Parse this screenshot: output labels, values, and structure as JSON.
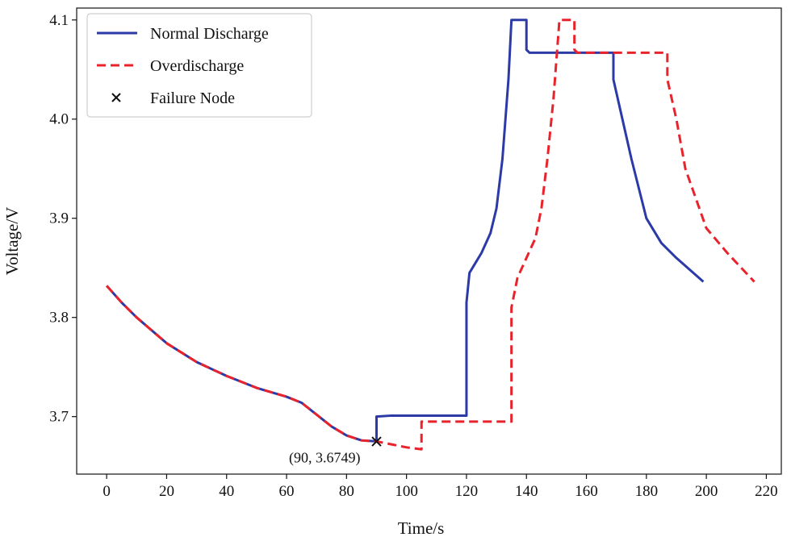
{
  "chart_data": {
    "type": "line",
    "title": "",
    "xlabel": "Time/s",
    "ylabel": "Voltage/V",
    "xlim": [
      -10,
      225
    ],
    "ylim": [
      3.642,
      4.112
    ],
    "xticks": [
      0,
      20,
      40,
      60,
      80,
      100,
      120,
      140,
      160,
      180,
      200,
      220
    ],
    "yticks": [
      3.7,
      3.8,
      3.9,
      4.0,
      4.1
    ],
    "xtick_labels": [
      "0",
      "20",
      "40",
      "60",
      "80",
      "100",
      "120",
      "140",
      "160",
      "180",
      "200",
      "220"
    ],
    "ytick_labels": [
      "3.7",
      "3.8",
      "3.9",
      "4.0",
      "4.1"
    ],
    "legend_position": "top-left",
    "series": [
      {
        "name": "Normal Discharge",
        "color": "#2b3aa6",
        "style": "solid",
        "x": [
          0,
          5,
          10,
          20,
          30,
          40,
          50,
          60,
          65,
          70,
          75,
          80,
          85,
          90,
          90,
          95,
          100,
          110,
          120,
          120,
          121,
          123,
          125,
          128,
          130,
          132,
          134,
          135,
          135,
          140,
          140,
          141,
          150,
          160,
          169,
          169,
          172,
          175,
          180,
          185,
          190,
          199
        ],
        "y": [
          3.832,
          3.815,
          3.8,
          3.774,
          3.755,
          3.741,
          3.729,
          3.72,
          3.714,
          3.702,
          3.69,
          3.681,
          3.676,
          3.675,
          3.7,
          3.701,
          3.701,
          3.701,
          3.701,
          3.815,
          3.845,
          3.855,
          3.865,
          3.885,
          3.91,
          3.96,
          4.04,
          4.1,
          4.1,
          4.1,
          4.07,
          4.067,
          4.067,
          4.067,
          4.067,
          4.04,
          4.0,
          3.96,
          3.9,
          3.875,
          3.86,
          3.836
        ]
      },
      {
        "name": "Overdischarge",
        "color": "#e8232b",
        "style": "dashed",
        "x": [
          0,
          5,
          10,
          20,
          30,
          40,
          50,
          60,
          65,
          70,
          75,
          80,
          85,
          90,
          95,
          100,
          105,
          105,
          115,
          125,
          135,
          135,
          137,
          140,
          143,
          145,
          147,
          149,
          151,
          151,
          156,
          156,
          157,
          165,
          175,
          187,
          187,
          190,
          193,
          200,
          207,
          216
        ],
        "y": [
          3.832,
          3.815,
          3.8,
          3.774,
          3.755,
          3.741,
          3.729,
          3.72,
          3.714,
          3.702,
          3.69,
          3.681,
          3.676,
          3.675,
          3.672,
          3.669,
          3.667,
          3.695,
          3.695,
          3.695,
          3.695,
          3.81,
          3.84,
          3.86,
          3.88,
          3.91,
          3.96,
          4.02,
          4.1,
          4.1,
          4.1,
          4.07,
          4.067,
          4.067,
          4.067,
          4.067,
          4.04,
          4.0,
          3.95,
          3.89,
          3.865,
          3.836
        ]
      }
    ],
    "markers": [
      {
        "name": "Failure Node",
        "x": 90,
        "y": 3.6749,
        "symbol": "x",
        "color": "#111111"
      }
    ],
    "annotations": [
      {
        "text": "(90, 3.6749)",
        "x": 90,
        "y": 3.6749
      }
    ],
    "legend": [
      {
        "label": "Normal Discharge",
        "color": "#2b3aa6",
        "style": "solid"
      },
      {
        "label": "Overdischarge",
        "color": "#e8232b",
        "style": "dashed"
      },
      {
        "label": "Failure Node",
        "color": "#111111",
        "style": "x-marker"
      }
    ]
  }
}
